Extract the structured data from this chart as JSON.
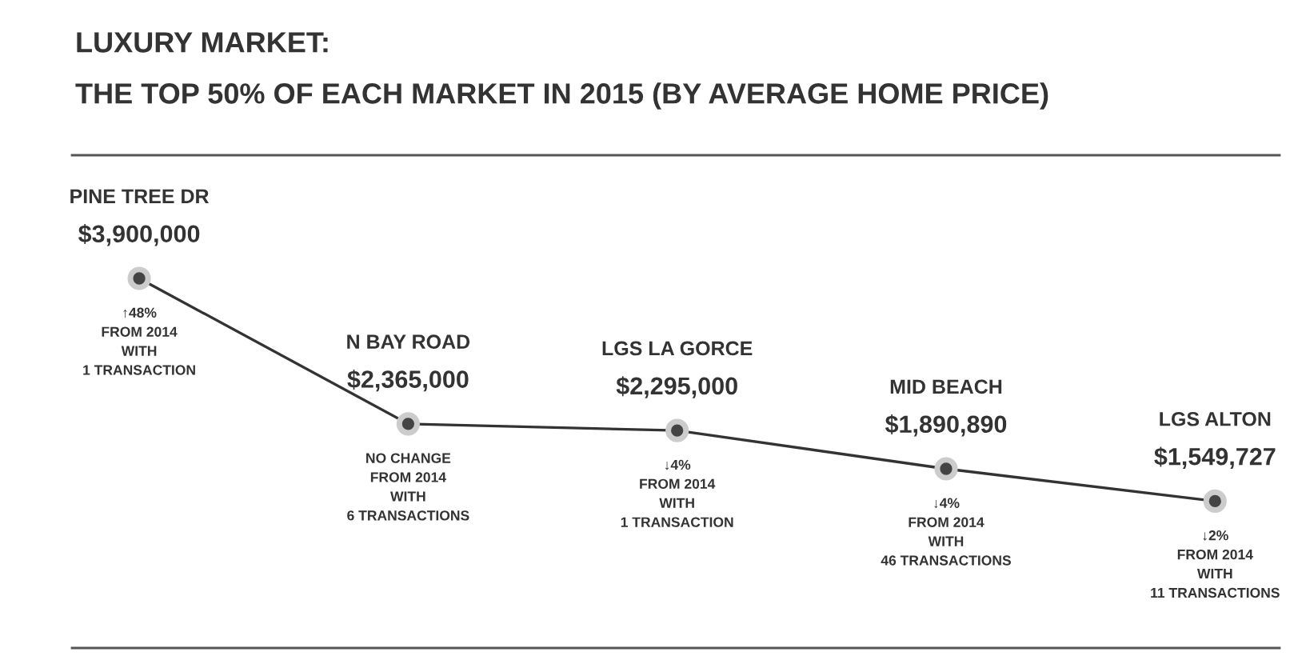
{
  "chart_data": {
    "type": "line",
    "title": "LUXURY MARKET:",
    "subtitle": "THE TOP 50% OF EACH MARKET IN 2015 (BY AVERAGE HOME PRICE)",
    "categories": [
      "PINE TREE DR",
      "N BAY ROAD",
      "LGS LA GORCE",
      "MID BEACH",
      "LGS ALTON"
    ],
    "series": [
      {
        "color": "#333333",
        "values": [
          3900000,
          2365000,
          2295000,
          1890890,
          1549727
        ],
        "value_labels": [
          "$3,900,000",
          "$2,365,000",
          "$2,295,000",
          "$1,890,890",
          "$1,549,727"
        ]
      }
    ],
    "marker": "circle",
    "line_style": "solid",
    "ylim": [
      0,
      5200000
    ],
    "legend": false,
    "annotations": [
      "↑48%\nFROM 2014\nWITH\n1 TRANSACTION",
      "NO CHANGE\nFROM 2014\nWITH\n6 TRANSACTIONS",
      "↓4%\nFROM 2014\nWITH\n1 TRANSACTION",
      "↓4%\nFROM 2014\nWITH\n46 TRANSACTIONS",
      "↓2%\nFROM 2014\nWITH\n11 TRANSACTIONS"
    ]
  }
}
